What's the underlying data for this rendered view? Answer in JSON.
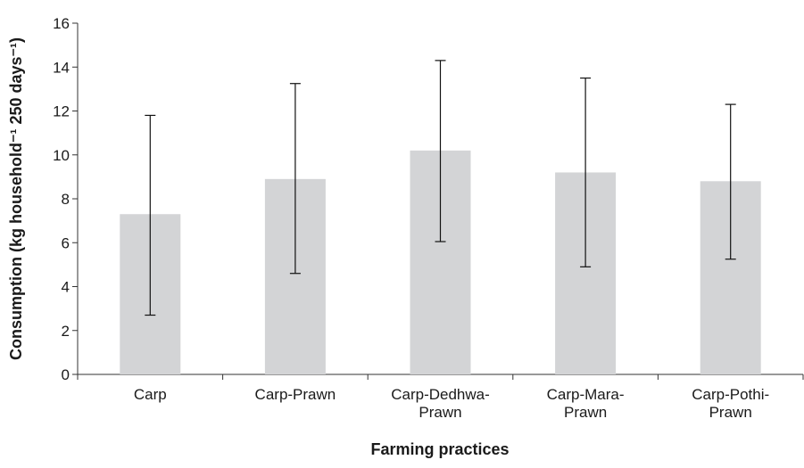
{
  "chart_data": {
    "type": "bar",
    "title": "",
    "xlabel": "Farming practices",
    "ylabel": "Consumption (kg household⁻¹ 250 days⁻¹)",
    "ylim": [
      0,
      16
    ],
    "yticks": [
      0,
      2,
      4,
      6,
      8,
      10,
      12,
      14,
      16
    ],
    "yticks_text": [
      "0",
      "2",
      "4",
      "6",
      "8",
      "10",
      "12",
      "14",
      "16"
    ],
    "grid": false,
    "legend": "none",
    "bar_color": "#d3d4d6",
    "categories": [
      [
        "Carp"
      ],
      [
        "Carp-Prawn"
      ],
      [
        "Carp-Dedhwa-",
        "Prawn"
      ],
      [
        "Carp-Mara-",
        "Prawn"
      ],
      [
        "Carp-Pothi-",
        "Prawn"
      ]
    ],
    "values": [
      7.3,
      8.9,
      10.2,
      9.2,
      8.8
    ],
    "error_low": [
      2.7,
      4.6,
      6.05,
      4.9,
      5.25
    ],
    "error_high": [
      11.8,
      13.25,
      14.3,
      13.5,
      12.3
    ]
  }
}
